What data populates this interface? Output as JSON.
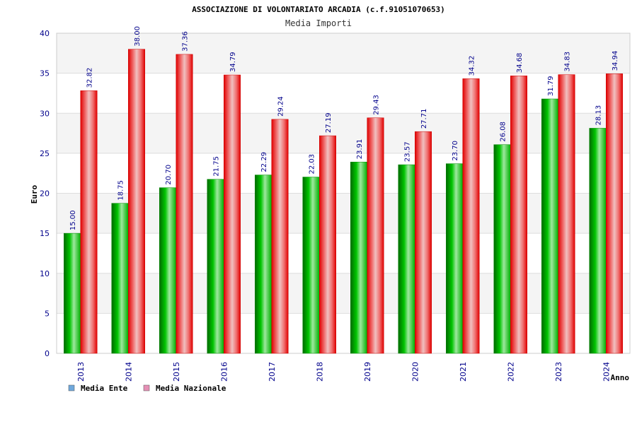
{
  "chart_data": {
    "type": "bar",
    "title": "ASSOCIAZIONE DI VOLONTARIATO ARCADIA (c.f.91051070653)",
    "subtitle": "Media Importi",
    "xlabel": "Anno",
    "ylabel": "Euro",
    "ylim": [
      0,
      40
    ],
    "yticks": [
      0,
      5,
      10,
      15,
      20,
      25,
      30,
      35,
      40
    ],
    "grid": true,
    "legend_position": "bottom-left",
    "categories": [
      "2013",
      "2014",
      "2015",
      "2016",
      "2017",
      "2018",
      "2019",
      "2020",
      "2021",
      "2022",
      "2023",
      "2024"
    ],
    "series": [
      {
        "name": "Media Ente",
        "color": "#00a000",
        "legend_color": "#6fa8dc",
        "values": [
          15.0,
          18.75,
          20.7,
          21.75,
          22.29,
          22.03,
          23.91,
          23.57,
          23.7,
          26.08,
          31.79,
          28.13
        ],
        "labels": [
          "15.00",
          "18.75",
          "20.70",
          "21.75",
          "22.29",
          "22.03",
          "23.91",
          "23.57",
          "23.70",
          "26.08",
          "31.79",
          "28.13"
        ]
      },
      {
        "name": "Media Nazionale",
        "color": "#ee0000",
        "legend_color": "#e58fb5",
        "values": [
          32.82,
          38.0,
          37.36,
          34.79,
          29.24,
          27.19,
          29.43,
          27.71,
          34.32,
          34.68,
          34.83,
          34.94
        ],
        "labels": [
          "32.82",
          "38.00",
          "37.36",
          "34.79",
          "29.24",
          "27.19",
          "29.43",
          "27.71",
          "34.32",
          "34.68",
          "34.83",
          "34.94"
        ]
      }
    ]
  }
}
